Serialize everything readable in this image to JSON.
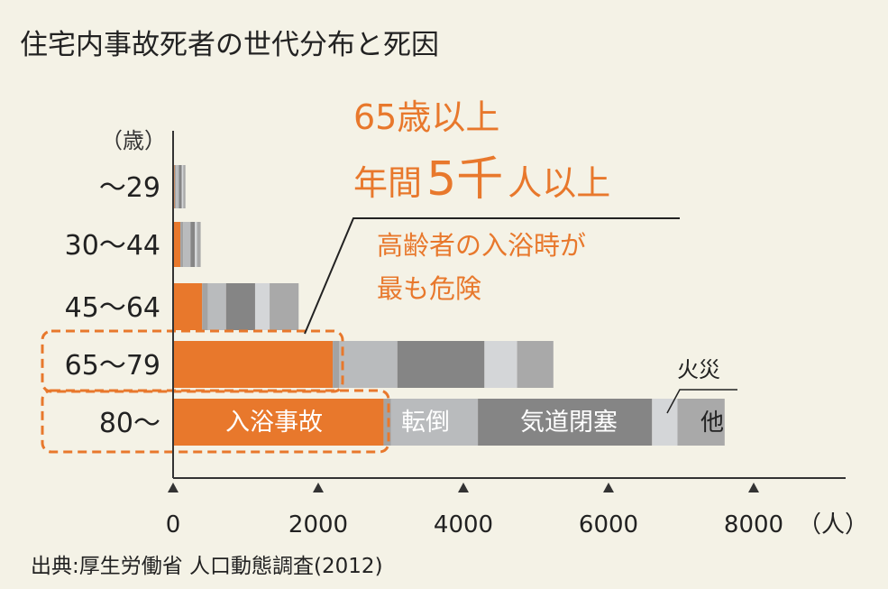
{
  "chart_data": {
    "type": "bar",
    "stacked": true,
    "orientation": "horizontal",
    "title": "住宅内事故死者の世代分布と死因",
    "y_unit_label": "（歳）",
    "x_unit_label": "（人）",
    "categories": [
      "～29",
      "30～44",
      "45～64",
      "65～79",
      "80～"
    ],
    "x_ticks": [
      0,
      2000,
      4000,
      6000,
      8000
    ],
    "xlim": [
      0,
      9000
    ],
    "series": [
      {
        "name": "入浴事故",
        "color": "#e8782c",
        "values": [
          20,
          100,
          400,
          2200,
          2900
        ]
      },
      {
        "name": "",
        "color": "#a3a3a3",
        "values": [
          20,
          40,
          80,
          90,
          100
        ]
      },
      {
        "name": "転倒",
        "color": "#b9bbbd",
        "values": [
          40,
          100,
          250,
          800,
          1200
        ]
      },
      {
        "name": "気道閉塞",
        "color": "#858585",
        "values": [
          40,
          60,
          400,
          1200,
          2400
        ]
      },
      {
        "name": "火災",
        "color": "#d4d6d8",
        "values": [
          20,
          30,
          200,
          450,
          350
        ]
      },
      {
        "name": "他",
        "color": "#a9a9a9",
        "values": [
          30,
          50,
          400,
          500,
          650
        ]
      }
    ],
    "in_bar_labels": {
      "bath": "入浴事故",
      "fall": "転倒",
      "airway": "気道閉塞",
      "other": "他"
    },
    "fire_label": "火災",
    "annotation": {
      "headline_line1": "65歳以上",
      "headline_line2_a": "年間",
      "headline_line2_b": "5千",
      "headline_line2_c": "人以上",
      "note_line1": "高齢者の入浴時が",
      "note_line2": "最も危険"
    },
    "source": "出典:厚生労働省 人口動態調査(2012)",
    "colors": {
      "accent": "#e8782c",
      "axis": "#333333",
      "highlight_box": "#e8782c"
    },
    "grid": false,
    "legend": "none"
  }
}
